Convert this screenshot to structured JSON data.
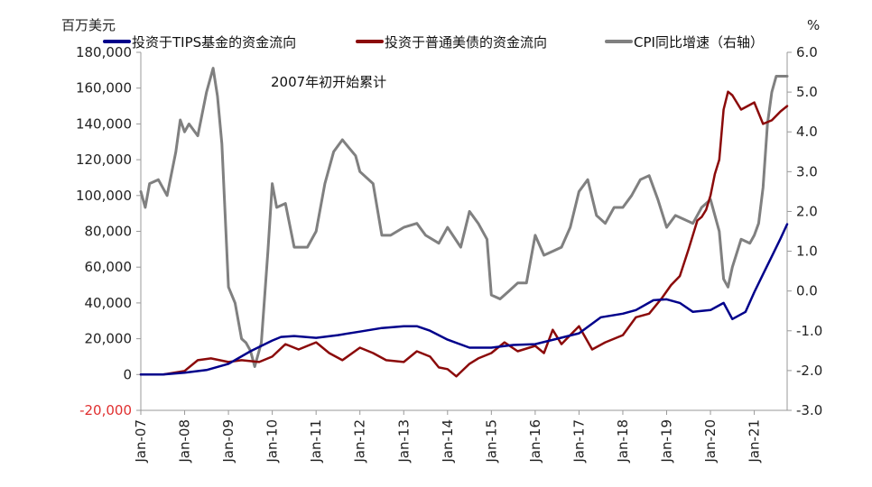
{
  "chart_data": {
    "type": "line",
    "left_axis_unit": "百万美元",
    "right_axis_unit": "%",
    "annotation": "2007年初开始累计",
    "x_tick_labels": [
      "Jan-07",
      "Jan-08",
      "Jan-09",
      "Jan-10",
      "Jan-11",
      "Jan-12",
      "Jan-13",
      "Jan-14",
      "Jan-15",
      "Jan-16",
      "Jan-17",
      "Jan-18",
      "Jan-19",
      "Jan-20",
      "Jan-21"
    ],
    "x_range": [
      2007.0,
      2021.75
    ],
    "left_ylim": [
      -20000,
      180000
    ],
    "left_ticks": [
      {
        "v": -20000,
        "label": "-20,000"
      },
      {
        "v": 0,
        "label": "0"
      },
      {
        "v": 20000,
        "label": "20,000"
      },
      {
        "v": 40000,
        "label": "40,000"
      },
      {
        "v": 60000,
        "label": "60,000"
      },
      {
        "v": 80000,
        "label": "80,000"
      },
      {
        "v": 100000,
        "label": "100,000"
      },
      {
        "v": 120000,
        "label": "120,000"
      },
      {
        "v": 140000,
        "label": "140,000"
      },
      {
        "v": 160000,
        "label": "160,000"
      },
      {
        "v": 180000,
        "label": "180,000"
      }
    ],
    "right_ylim": [
      -3.0,
      6.0
    ],
    "right_ticks": [
      {
        "v": -3,
        "label": "-3.0"
      },
      {
        "v": -2,
        "label": "-2.0"
      },
      {
        "v": -1,
        "label": "-1.0"
      },
      {
        "v": 0,
        "label": "0.0"
      },
      {
        "v": 1,
        "label": "1.0"
      },
      {
        "v": 2,
        "label": "2.0"
      },
      {
        "v": 3,
        "label": "3.0"
      },
      {
        "v": 4,
        "label": "4.0"
      },
      {
        "v": 5,
        "label": "5.0"
      },
      {
        "v": 6,
        "label": "6.0"
      }
    ],
    "grid": false,
    "legend_position": "top",
    "series": [
      {
        "name": "投资于TIPS基金的资金流向",
        "axis": "left",
        "color": "#00008B",
        "x": [
          2007.0,
          2007.5,
          2008.0,
          2008.5,
          2009.0,
          2009.5,
          2010.0,
          2010.2,
          2010.5,
          2011.0,
          2011.5,
          2012.0,
          2012.5,
          2013.0,
          2013.3,
          2013.6,
          2014.0,
          2014.5,
          2015.0,
          2015.5,
          2016.0,
          2016.5,
          2017.0,
          2017.5,
          2018.0,
          2018.3,
          2018.7,
          2019.0,
          2019.3,
          2019.6,
          2020.0,
          2020.15,
          2020.3,
          2020.5,
          2020.8,
          2021.0,
          2021.2,
          2021.4,
          2021.6,
          2021.75
        ],
        "y": [
          0,
          0,
          1000,
          2500,
          6000,
          13000,
          19000,
          21000,
          21500,
          20500,
          22000,
          24000,
          26000,
          27000,
          27000,
          24500,
          19500,
          15000,
          15000,
          16500,
          17000,
          20000,
          23000,
          32000,
          34000,
          36000,
          41500,
          42000,
          40000,
          35000,
          36000,
          38000,
          40000,
          31000,
          35000,
          46000,
          56000,
          66000,
          76000,
          84000
        ]
      },
      {
        "name": "投资于普通美债的资金流向",
        "axis": "left",
        "color": "#8B0A0A",
        "x": [
          2007.0,
          2007.5,
          2008.0,
          2008.3,
          2008.6,
          2009.0,
          2009.3,
          2009.7,
          2010.0,
          2010.3,
          2010.6,
          2011.0,
          2011.3,
          2011.6,
          2012.0,
          2012.3,
          2012.6,
          2013.0,
          2013.3,
          2013.6,
          2013.8,
          2014.0,
          2014.2,
          2014.5,
          2014.7,
          2015.0,
          2015.3,
          2015.6,
          2016.0,
          2016.2,
          2016.4,
          2016.6,
          2016.8,
          2017.0,
          2017.3,
          2017.6,
          2018.0,
          2018.3,
          2018.6,
          2018.9,
          2019.1,
          2019.3,
          2019.5,
          2019.7,
          2019.8,
          2019.9,
          2020.0,
          2020.1,
          2020.2,
          2020.3,
          2020.4,
          2020.5,
          2020.7,
          2021.0,
          2021.2,
          2021.4,
          2021.6,
          2021.75
        ],
        "y": [
          0,
          0,
          2000,
          8000,
          9000,
          7000,
          8000,
          7000,
          10000,
          17000,
          14000,
          18000,
          12000,
          8000,
          15000,
          12000,
          8000,
          7000,
          13000,
          10000,
          4000,
          3000,
          -1000,
          6000,
          9000,
          12000,
          18000,
          13000,
          16000,
          12000,
          25000,
          17000,
          22000,
          27000,
          14000,
          18000,
          22000,
          32000,
          34000,
          43000,
          50000,
          55000,
          70000,
          86000,
          88000,
          92000,
          100000,
          112000,
          120000,
          148000,
          158000,
          156000,
          148000,
          152000,
          140000,
          142000,
          147000,
          150000
        ]
      },
      {
        "name": "CPI同比增速（右轴）",
        "axis": "right",
        "color": "#808080",
        "x": [
          2007.0,
          2007.1,
          2007.2,
          2007.4,
          2007.6,
          2007.8,
          2007.9,
          2008.0,
          2008.1,
          2008.3,
          2008.5,
          2008.65,
          2008.75,
          2008.85,
          2009.0,
          2009.15,
          2009.3,
          2009.4,
          2009.5,
          2009.6,
          2009.75,
          2009.9,
          2010.0,
          2010.1,
          2010.3,
          2010.5,
          2010.8,
          2011.0,
          2011.2,
          2011.4,
          2011.6,
          2011.75,
          2011.9,
          2012.0,
          2012.3,
          2012.5,
          2012.7,
          2013.0,
          2013.3,
          2013.5,
          2013.8,
          2014.0,
          2014.3,
          2014.5,
          2014.7,
          2014.9,
          2015.0,
          2015.2,
          2015.4,
          2015.6,
          2015.8,
          2016.0,
          2016.2,
          2016.4,
          2016.6,
          2016.8,
          2017.0,
          2017.2,
          2017.4,
          2017.6,
          2017.8,
          2018.0,
          2018.2,
          2018.4,
          2018.6,
          2018.8,
          2019.0,
          2019.2,
          2019.4,
          2019.6,
          2019.8,
          2020.0,
          2020.2,
          2020.3,
          2020.4,
          2020.5,
          2020.7,
          2020.9,
          2021.0,
          2021.1,
          2021.2,
          2021.3,
          2021.4,
          2021.5,
          2021.6,
          2021.75
        ],
        "y": [
          2.5,
          2.1,
          2.7,
          2.8,
          2.4,
          3.5,
          4.3,
          4.0,
          4.2,
          3.9,
          5.0,
          5.6,
          4.9,
          3.7,
          0.1,
          -0.3,
          -1.2,
          -1.3,
          -1.5,
          -1.9,
          -1.3,
          1.0,
          2.7,
          2.1,
          2.2,
          1.1,
          1.1,
          1.5,
          2.7,
          3.5,
          3.8,
          3.6,
          3.4,
          3.0,
          2.7,
          1.4,
          1.4,
          1.6,
          1.7,
          1.4,
          1.2,
          1.6,
          1.1,
          2.0,
          1.7,
          1.3,
          -0.1,
          -0.2,
          0.0,
          0.2,
          0.2,
          1.4,
          0.9,
          1.0,
          1.1,
          1.6,
          2.5,
          2.8,
          1.9,
          1.7,
          2.1,
          2.1,
          2.4,
          2.8,
          2.9,
          2.3,
          1.6,
          1.9,
          1.8,
          1.7,
          2.1,
          2.3,
          1.5,
          0.3,
          0.1,
          0.6,
          1.3,
          1.2,
          1.4,
          1.7,
          2.6,
          4.2,
          5.0,
          5.4,
          5.4,
          5.4
        ]
      }
    ]
  }
}
